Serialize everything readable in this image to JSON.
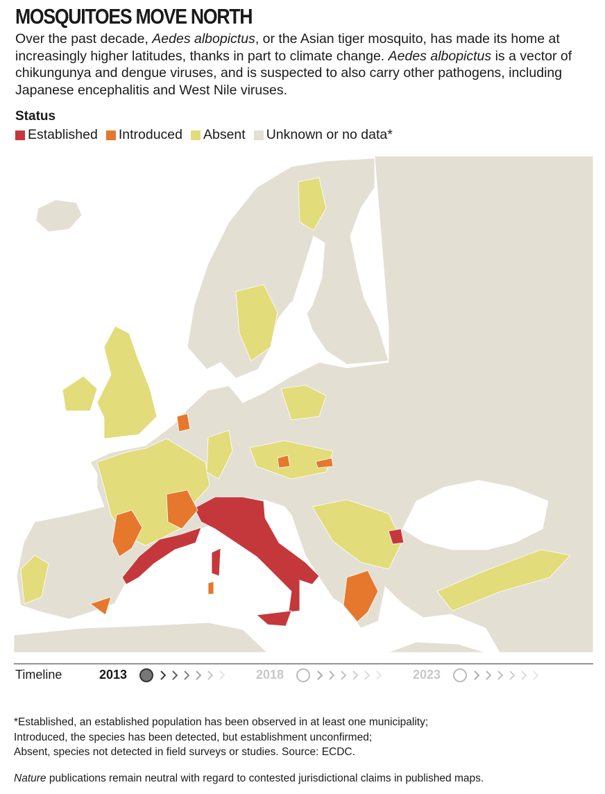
{
  "header": {
    "title": "MOSQUITOES MOVE NORTH",
    "description": [
      {
        "text": "Over the past decade, "
      },
      {
        "text": "Aedes albopictus",
        "italic": true
      },
      {
        "text": ", or the Asian tiger mosquito, has made its home at increasingly higher latitudes, thanks in part to climate change. "
      },
      {
        "text": "Aedes albopictus",
        "italic": true
      },
      {
        "text": " is a vector of chikungunya and dengue viruses, and is suspected to also carry other pathogens, including Japanese encephalitis and West Nile viruses."
      }
    ]
  },
  "legend": {
    "title": "Status",
    "items": [
      {
        "label": "Established",
        "color": "#c4383c"
      },
      {
        "label": "Introduced",
        "color": "#e5782c"
      },
      {
        "label": "Absent",
        "color": "#e2dc7a"
      },
      {
        "label": "Unknown or no data*",
        "color": "#e4dfd3"
      }
    ]
  },
  "timeline": {
    "label": "Timeline",
    "years": [
      "2013",
      "2018",
      "2023"
    ]
  },
  "footnote": {
    "lines": [
      "*Established, an established population has been observed in at least one municipality;",
      "Introduced, the species has been detected, but establishment unconfirmed;",
      "Absent, species not detected in field surveys or studies. Source: ECDC."
    ],
    "note": [
      {
        "text": "Nature",
        "italic": true
      },
      {
        "text": " publications remain neutral with regard to contested jurisdictional claims in published maps."
      }
    ]
  }
}
